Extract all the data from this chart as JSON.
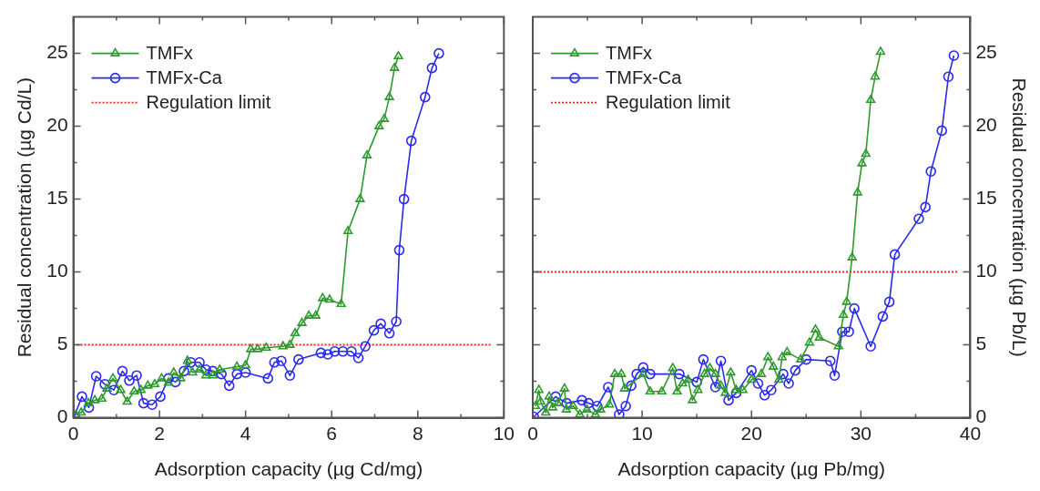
{
  "chart_data": [
    {
      "type": "line",
      "xlabel": "Adsorption capacity (µg Cd/mg)",
      "ylabel": "Residual concentration (µg Cd/L)",
      "xlim": [
        0,
        10
      ],
      "xticks": [
        0,
        {
          "value": 1,
          "label": null
        },
        2,
        {
          "value": 3,
          "label": null
        },
        4,
        {
          "value": 5,
          "label": null
        },
        6,
        {
          "value": 7,
          "label": null
        },
        8,
        {
          "value": 9,
          "label": null
        },
        10
      ],
      "ylim": [
        0,
        27.5
      ],
      "yticks": [
        0,
        {
          "value": 2.5,
          "label": null
        },
        5,
        {
          "value": 7.5,
          "label": null
        },
        10,
        {
          "value": 12.5,
          "label": null
        },
        15,
        {
          "value": 17.5,
          "label": null
        },
        20,
        {
          "value": 22.5,
          "label": null
        },
        25
      ],
      "grid": false,
      "legend": "top left",
      "line_style": "solid",
      "ref_lines": [
        {
          "axis": "y",
          "value": 5,
          "label": "Regulation limit",
          "color": "#ff2020",
          "line_style": "dotted"
        }
      ],
      "series": [
        {
          "name": "TMFx",
          "color": "#2e9a2e",
          "marker": "triangle",
          "x": [
            0.06,
            0.18,
            0.35,
            0.5,
            0.66,
            0.78,
            0.92,
            1.1,
            1.25,
            1.41,
            1.57,
            1.73,
            1.89,
            2.05,
            2.21,
            2.33,
            2.49,
            2.65,
            2.77,
            2.93,
            3.08,
            3.24,
            3.4,
            3.8,
            4.0,
            4.12,
            4.28,
            4.48,
            4.87,
            5.03,
            5.15,
            5.31,
            5.47,
            5.63,
            5.79,
            5.95,
            6.22,
            6.38,
            6.66,
            6.82,
            7.1,
            7.22,
            7.34,
            7.46,
            7.55
          ],
          "values": [
            0.2,
            0.35,
            1.0,
            1.2,
            1.3,
            2.0,
            2.7,
            1.9,
            1.1,
            1.8,
            1.9,
            2.2,
            2.3,
            2.7,
            2.4,
            3.1,
            2.7,
            3.9,
            3.1,
            3.3,
            2.9,
            2.9,
            3.3,
            3.5,
            3.6,
            4.7,
            4.7,
            4.8,
            4.9,
            5.0,
            5.8,
            6.5,
            7.0,
            7.0,
            8.2,
            8.1,
            7.8,
            12.8,
            15.0,
            18.0,
            20.0,
            20.5,
            22.0,
            24.0,
            24.8
          ]
        },
        {
          "name": "TMFx-Ca",
          "color": "#2a2aee",
          "marker": "circle",
          "x": [
            0.02,
            0.2,
            0.36,
            0.53,
            0.73,
            0.94,
            1.14,
            1.3,
            1.47,
            1.63,
            1.83,
            2.02,
            2.21,
            2.37,
            2.57,
            2.73,
            2.93,
            3.08,
            3.24,
            3.44,
            3.62,
            3.8,
            4.0,
            4.52,
            4.67,
            4.83,
            5.03,
            5.23,
            5.75,
            5.91,
            6.07,
            6.26,
            6.46,
            6.62,
            6.78,
            6.98,
            7.14,
            7.34,
            7.5,
            7.57,
            7.68,
            7.85,
            8.17,
            8.33,
            8.49
          ],
          "values": [
            0.1,
            1.45,
            0.7,
            2.85,
            2.3,
            1.9,
            3.2,
            2.55,
            2.9,
            1.0,
            0.9,
            1.45,
            2.7,
            2.45,
            3.2,
            3.8,
            3.8,
            3.3,
            3.2,
            3.0,
            2.2,
            3.0,
            3.1,
            2.7,
            3.8,
            3.9,
            2.9,
            4.0,
            4.45,
            4.35,
            4.55,
            4.55,
            4.55,
            4.1,
            4.9,
            6.0,
            6.45,
            5.8,
            6.6,
            11.5,
            15.0,
            19.0,
            22.0,
            24.0,
            25.0
          ]
        }
      ]
    },
    {
      "type": "line",
      "xlabel": "Adsorption capacity (µg Pb/mg)",
      "y2label": "Residual concentration (µg Pb/L)",
      "xlim": [
        0,
        40
      ],
      "xticks": [
        0,
        {
          "value": 5,
          "label": null
        },
        10,
        {
          "value": 15,
          "label": null
        },
        20,
        {
          "value": 25,
          "label": null
        },
        30,
        {
          "value": 35,
          "label": null
        },
        40
      ],
      "y2lim": [
        0,
        27.5
      ],
      "y2ticks": [
        0,
        {
          "value": 2.5,
          "label": null
        },
        5,
        {
          "value": 7.5,
          "label": null
        },
        10,
        {
          "value": 12.5,
          "label": null
        },
        15,
        {
          "value": 17.5,
          "label": null
        },
        20,
        {
          "value": 22.5,
          "label": null
        },
        25
      ],
      "grid": false,
      "legend": "top left",
      "line_style": "solid",
      "ref_lines": [
        {
          "axis": "y2",
          "value": 10,
          "label": "Regulation limit",
          "color": "#ff2020",
          "line_style": "dotted"
        }
      ],
      "series": [
        {
          "name": "TMFx",
          "color": "#2e9a2e",
          "marker": "triangle",
          "axis": "y2",
          "x": [
            0.25,
            0.56,
            0.72,
            1.19,
            1.5,
            1.82,
            2.28,
            2.9,
            3.07,
            3.7,
            4.3,
            4.95,
            5.73,
            6.2,
            7.0,
            7.5,
            8.1,
            8.4,
            10.1,
            10.73,
            11.8,
            12.8,
            13.2,
            13.7,
            14.2,
            14.6,
            15.1,
            15.7,
            16.2,
            16.7,
            17.2,
            17.6,
            18.1,
            18.6,
            19.2,
            20.0,
            20.9,
            21.5,
            22.0,
            22.5,
            22.8,
            23.25,
            24.5,
            25.3,
            25.85,
            26.2,
            27.95,
            28.4,
            28.7,
            29.2,
            29.7,
            30.1,
            30.45,
            30.9,
            31.3,
            31.8
          ],
          "values": [
            0.8,
            1.9,
            1.1,
            0.35,
            1.45,
            0.7,
            1.0,
            2.0,
            0.56,
            0.8,
            0.22,
            0.56,
            0.22,
            0.56,
            0.9,
            3.0,
            3.0,
            2.0,
            3.0,
            1.8,
            1.8,
            3.4,
            1.8,
            2.35,
            2.6,
            1.2,
            1.9,
            3.0,
            3.4,
            3.0,
            2.2,
            1.7,
            3.1,
            1.9,
            1.9,
            2.6,
            3.0,
            4.15,
            3.5,
            2.6,
            4.15,
            4.5,
            4.0,
            5.15,
            6.05,
            5.5,
            4.9,
            7.05,
            7.95,
            11.0,
            15.45,
            17.45,
            18.1,
            21.8,
            23.4,
            25.1
          ]
        },
        {
          "name": "TMFx-Ca",
          "color": "#2a2aee",
          "marker": "circle",
          "axis": "y2",
          "x": [
            0.1,
            2.1,
            3.1,
            4.5,
            5.1,
            5.9,
            6.9,
            7.9,
            8.5,
            9.0,
            9.5,
            10.1,
            10.73,
            13.4,
            15.0,
            15.6,
            16.7,
            17.2,
            17.9,
            18.6,
            20.0,
            20.6,
            21.2,
            21.8,
            22.9,
            23.4,
            24.0,
            25.0,
            27.2,
            27.6,
            28.3,
            28.9,
            29.4,
            30.9,
            32.0,
            32.6,
            33.1,
            35.3,
            35.9,
            36.4,
            37.4,
            38.0,
            38.5
          ],
          "values": [
            0.07,
            1.45,
            1.0,
            1.2,
            1.0,
            0.8,
            2.1,
            0.22,
            0.8,
            2.2,
            3.0,
            3.45,
            3.0,
            3.0,
            2.45,
            4.0,
            2.1,
            3.9,
            1.2,
            1.7,
            3.25,
            2.35,
            1.55,
            1.9,
            3.0,
            2.35,
            3.25,
            4.0,
            3.9,
            2.9,
            5.9,
            5.9,
            7.5,
            4.9,
            6.95,
            7.95,
            11.2,
            13.65,
            14.45,
            16.9,
            19.7,
            23.4,
            24.85
          ]
        }
      ]
    }
  ]
}
